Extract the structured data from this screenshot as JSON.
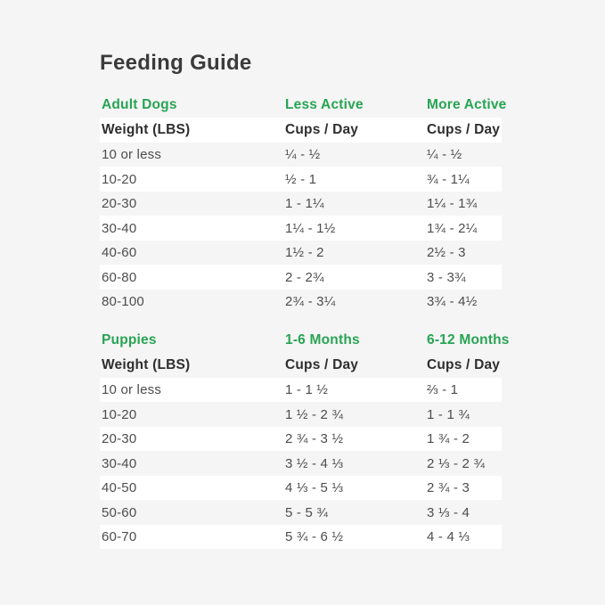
{
  "title": "Feeding Guide",
  "colors": {
    "background": "#f5f5f5",
    "row_stripe": "#ffffff",
    "accent_green": "#27a453",
    "title_text": "#3b3b3b",
    "header_text": "#2e2e2e",
    "body_text": "#4d4d4d"
  },
  "adult_table": {
    "section_label": "Adult Dogs",
    "col_less_active": "Less Active",
    "col_more_active": "More Active",
    "header": {
      "weight": "Weight (LBS)",
      "less_active": "Cups / Day",
      "more_active": "Cups / Day"
    },
    "rows": [
      {
        "weight": "10 or less",
        "less_active": "¼ - ½",
        "more_active": "¼ - ½"
      },
      {
        "weight": "10-20",
        "less_active": "½ - 1",
        "more_active": "¾ - 1¼"
      },
      {
        "weight": "20-30",
        "less_active": "1 - 1¼",
        "more_active": "1¼ - 1¾"
      },
      {
        "weight": "30-40",
        "less_active": "1¼ - 1½",
        "more_active": "1¾ - 2¼"
      },
      {
        "weight": "40-60",
        "less_active": "1½ - 2",
        "more_active": "2½ - 3"
      },
      {
        "weight": "60-80",
        "less_active": "2 - 2¾",
        "more_active": "3 - 3¾"
      },
      {
        "weight": "80-100",
        "less_active": "2¾ - 3¼",
        "more_active": "3¾ - 4½"
      }
    ]
  },
  "puppy_table": {
    "section_label": "Puppies",
    "col_months_1_6": "1-6 Months",
    "col_months_6_12": "6-12 Months",
    "header": {
      "weight": "Weight (LBS)",
      "months_1_6": "Cups / Day",
      "months_6_12": "Cups / Day"
    },
    "rows": [
      {
        "weight": "10 or less",
        "months_1_6": "1 - 1 ½",
        "months_6_12": "⅔ - 1"
      },
      {
        "weight": "10-20",
        "months_1_6": "1 ½ - 2 ¾",
        "months_6_12": "1 - 1 ¾"
      },
      {
        "weight": "20-30",
        "months_1_6": "2 ¾ - 3 ½",
        "months_6_12": "1 ¾ - 2"
      },
      {
        "weight": "30-40",
        "months_1_6": "3 ½ - 4 ⅓",
        "months_6_12": "2 ⅓ - 2 ¾"
      },
      {
        "weight": "40-50",
        "months_1_6": "4 ⅓ - 5 ⅓",
        "months_6_12": "2 ¾ - 3"
      },
      {
        "weight": "50-60",
        "months_1_6": "5 - 5 ¾",
        "months_6_12": "3 ⅓ - 4"
      },
      {
        "weight": "60-70",
        "months_1_6": "5 ¾ - 6 ½",
        "months_6_12": "4 - 4 ⅓"
      }
    ]
  }
}
